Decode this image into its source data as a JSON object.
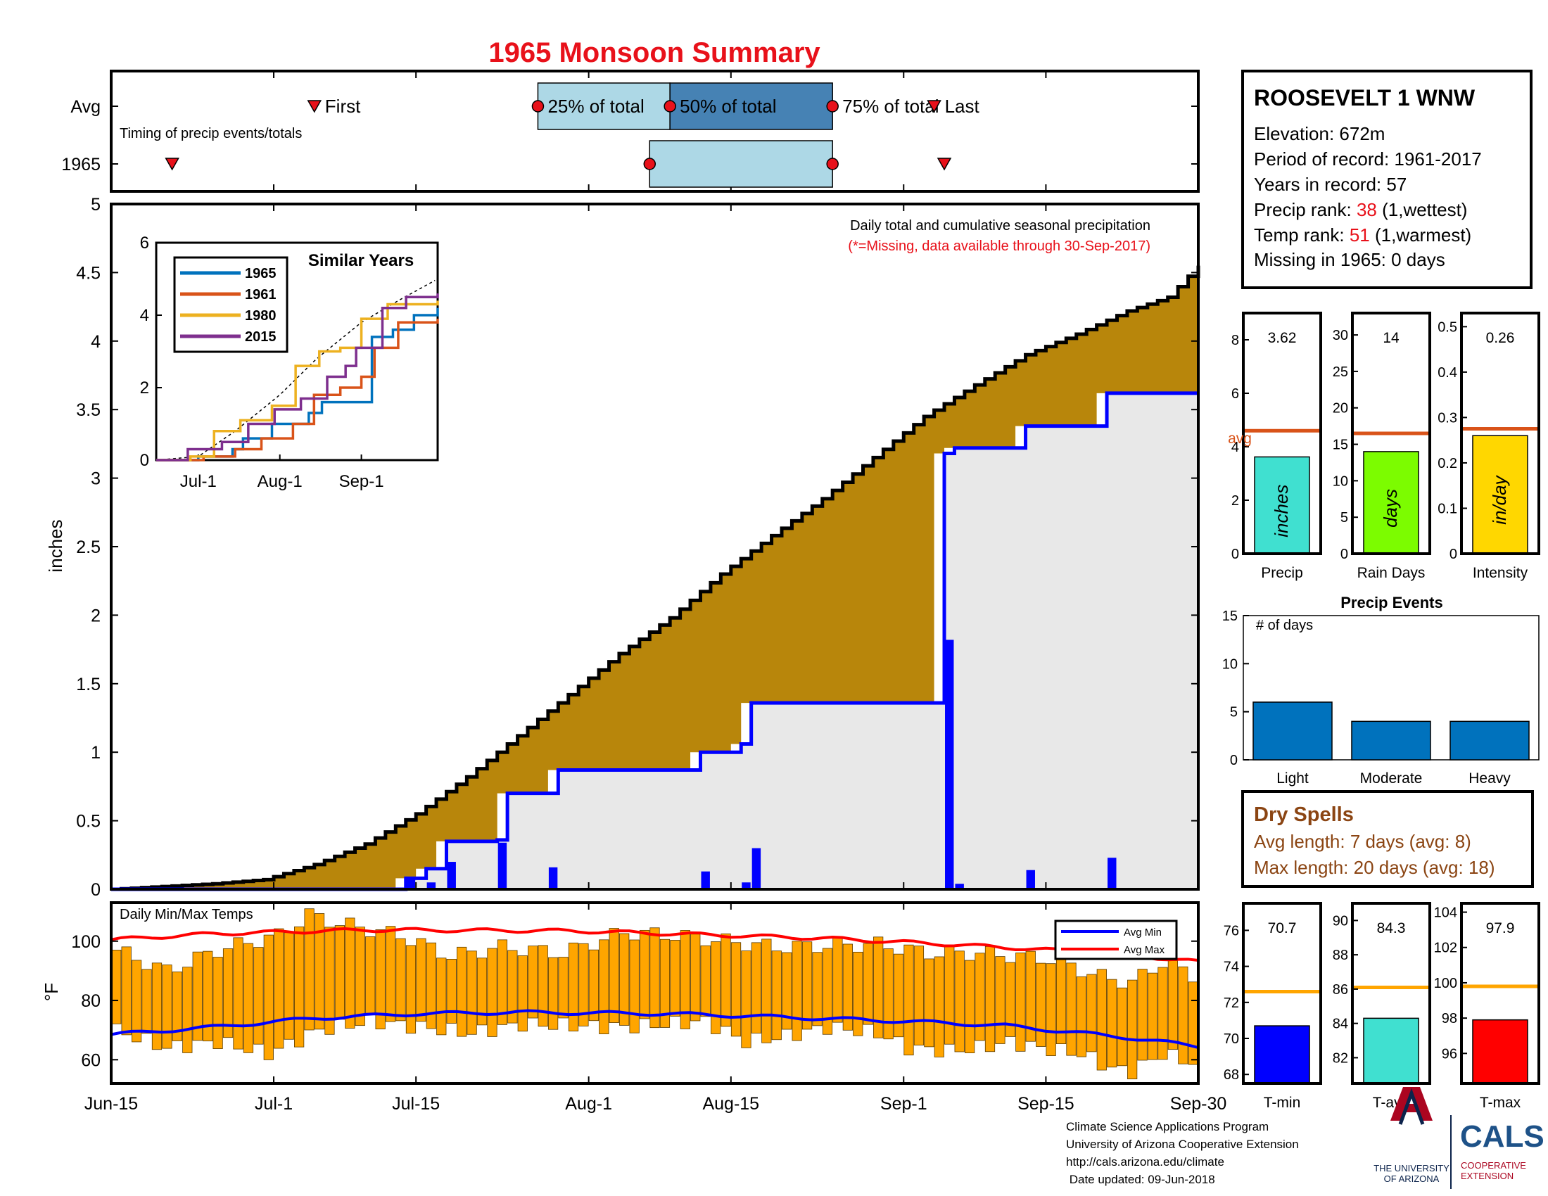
{
  "title": "1965 Monsoon Summary",
  "timing": {
    "row_labels": [
      "Avg",
      "1965"
    ],
    "caption": "Timing of precip events/totals",
    "labels": {
      "first": "First",
      "q25": "25% of total",
      "q50": "50% of total",
      "q75": "75% of total",
      "last": "Last"
    },
    "avg": {
      "first": 20,
      "q25": 42,
      "q50": 55,
      "q75": 71,
      "last": 81
    },
    "year": {
      "first": 6,
      "q50": 53,
      "q75": 71,
      "last": 82
    }
  },
  "station": {
    "name": "ROOSEVELT 1 WNW",
    "elevation": "Elevation: 672m",
    "period": "Period of record: 1961-2017",
    "years": "Years in record: 57",
    "precip_rank_label": "Precip rank: ",
    "precip_rank": "38",
    "precip_rank_note": " (1,wettest)",
    "temp_rank_label": "Temp rank: ",
    "temp_rank": "51",
    "temp_rank_note": " (1,warmest)",
    "missing": "Missing in 1965: 0 days"
  },
  "main": {
    "ylabel": "inches",
    "note": "Daily total and cumulative seasonal precipitation",
    "missing_note": "(*=Missing, data available through 30-Sep-2017)",
    "ylim": [
      0,
      5
    ],
    "yticks": [
      "0",
      "0.5",
      "1",
      "1.5",
      "2",
      "2.5",
      "3",
      "3.5",
      "4",
      "4.5",
      "5"
    ],
    "xlim": [
      0,
      107
    ],
    "xtick_labels": [
      "Jun-15",
      "Jul-1",
      "Jul-15",
      "Aug-1",
      "Aug-15",
      "Sep-1",
      "Sep-15",
      "Sep-30"
    ],
    "xtick_pos": [
      0,
      16,
      30,
      47,
      61,
      78,
      92,
      107
    ],
    "avg_cum_anchors": [
      [
        0,
        0
      ],
      [
        5,
        0.02
      ],
      [
        10,
        0.04
      ],
      [
        15,
        0.07
      ],
      [
        20,
        0.18
      ],
      [
        25,
        0.33
      ],
      [
        30,
        0.55
      ],
      [
        35,
        0.82
      ],
      [
        40,
        1.12
      ],
      [
        45,
        1.42
      ],
      [
        50,
        1.72
      ],
      [
        55,
        1.98
      ],
      [
        60,
        2.3
      ],
      [
        65,
        2.58
      ],
      [
        70,
        2.85
      ],
      [
        75,
        3.15
      ],
      [
        80,
        3.45
      ],
      [
        85,
        3.68
      ],
      [
        90,
        3.9
      ],
      [
        95,
        4.05
      ],
      [
        100,
        4.22
      ],
      [
        104,
        4.32
      ],
      [
        107,
        4.55
      ]
    ],
    "cum_steps": [
      [
        0,
        0
      ],
      [
        29,
        0.08
      ],
      [
        31,
        0.15
      ],
      [
        33,
        0.35
      ],
      [
        38,
        0.36
      ],
      [
        39,
        0.7
      ],
      [
        44,
        0.87
      ],
      [
        58,
        1.0
      ],
      [
        62,
        1.06
      ],
      [
        63,
        1.36
      ],
      [
        82,
        3.18
      ],
      [
        83,
        3.22
      ],
      [
        90,
        3.38
      ],
      [
        98,
        3.62
      ],
      [
        107,
        3.62
      ]
    ],
    "daily": [
      [
        29,
        0.07
      ],
      [
        31,
        0.05
      ],
      [
        33,
        0.2
      ],
      [
        38,
        0.34
      ],
      [
        43,
        0.16
      ],
      [
        58,
        0.13
      ],
      [
        62,
        0.05
      ],
      [
        63,
        0.3
      ],
      [
        82,
        1.82
      ],
      [
        83,
        0.04
      ],
      [
        90,
        0.14
      ],
      [
        98,
        0.23
      ]
    ]
  },
  "inset": {
    "title": "Similar Years",
    "ylim": [
      0,
      6
    ],
    "yticks": [
      "0",
      "2",
      "4",
      "6"
    ],
    "xtick_labels": [
      "Jul-1",
      "Aug-1",
      "Sep-1"
    ],
    "xtick_pos": [
      16,
      47,
      78
    ],
    "colors": [
      "#0072bd",
      "#d95319",
      "#edb120",
      "#7e2f8e"
    ],
    "series": [
      {
        "name": "1965",
        "steps": [
          [
            0,
            0
          ],
          [
            16,
            0.1
          ],
          [
            29,
            0.3
          ],
          [
            33,
            0.6
          ],
          [
            44,
            1.0
          ],
          [
            58,
            1.3
          ],
          [
            63,
            1.6
          ],
          [
            82,
            3.4
          ],
          [
            90,
            3.6
          ],
          [
            98,
            4.0
          ],
          [
            107,
            4.2
          ]
        ]
      },
      {
        "name": "1961",
        "steps": [
          [
            0,
            0
          ],
          [
            18,
            0.1
          ],
          [
            30,
            0.3
          ],
          [
            40,
            0.6
          ],
          [
            52,
            1.0
          ],
          [
            60,
            1.8
          ],
          [
            70,
            2.0
          ],
          [
            78,
            2.3
          ],
          [
            83,
            3.1
          ],
          [
            92,
            3.8
          ],
          [
            107,
            3.9
          ]
        ]
      },
      {
        "name": "1980",
        "steps": [
          [
            0,
            0
          ],
          [
            13,
            0.1
          ],
          [
            22,
            0.8
          ],
          [
            32,
            1.1
          ],
          [
            44,
            1.5
          ],
          [
            53,
            2.6
          ],
          [
            62,
            3.0
          ],
          [
            70,
            3.1
          ],
          [
            78,
            3.9
          ],
          [
            88,
            4.3
          ],
          [
            107,
            4.4
          ]
        ]
      },
      {
        "name": "2015",
        "steps": [
          [
            0,
            0
          ],
          [
            12,
            0.3
          ],
          [
            25,
            0.5
          ],
          [
            35,
            1.0
          ],
          [
            45,
            1.4
          ],
          [
            55,
            1.7
          ],
          [
            65,
            2.3
          ],
          [
            72,
            2.6
          ],
          [
            76,
            3.1
          ],
          [
            86,
            4.2
          ],
          [
            95,
            4.5
          ],
          [
            107,
            4.6
          ]
        ]
      }
    ],
    "avg_anchors": [
      [
        0,
        0
      ],
      [
        16,
        0.1
      ],
      [
        30,
        0.8
      ],
      [
        47,
        1.8
      ],
      [
        61,
        2.8
      ],
      [
        78,
        3.8
      ],
      [
        92,
        4.4
      ],
      [
        107,
        5.0
      ]
    ]
  },
  "temps": {
    "caption": "Daily Min/Max Temps",
    "ylabel": "°F",
    "ylim": [
      52,
      113
    ],
    "yticks": [
      60,
      80,
      100
    ],
    "ytick_labels": [
      "60",
      "80",
      "100"
    ],
    "legend": [
      "Avg Min",
      "Avg Max"
    ],
    "avg_max": [
      [
        0,
        100.5
      ],
      [
        10,
        102.5
      ],
      [
        25,
        103.8
      ],
      [
        45,
        103.5
      ],
      [
        55,
        102.5
      ],
      [
        70,
        101.0
      ],
      [
        82,
        99.0
      ],
      [
        90,
        97.5
      ],
      [
        100,
        95.5
      ],
      [
        107,
        93.0
      ]
    ],
    "avg_min": [
      [
        0,
        68.5
      ],
      [
        10,
        71.0
      ],
      [
        20,
        74.0
      ],
      [
        30,
        75.5
      ],
      [
        40,
        76.0
      ],
      [
        55,
        75.5
      ],
      [
        65,
        74.5
      ],
      [
        78,
        73.0
      ],
      [
        88,
        71.5
      ],
      [
        100,
        67.5
      ],
      [
        107,
        64.5
      ]
    ],
    "max_anchors": [
      [
        0,
        97
      ],
      [
        5,
        90
      ],
      [
        10,
        97
      ],
      [
        16,
        102
      ],
      [
        19,
        109
      ],
      [
        22,
        106
      ],
      [
        28,
        102
      ],
      [
        33,
        95
      ],
      [
        38,
        98
      ],
      [
        44,
        96
      ],
      [
        50,
        103
      ],
      [
        55,
        102
      ],
      [
        60,
        100
      ],
      [
        65,
        98
      ],
      [
        75,
        99
      ],
      [
        80,
        96
      ],
      [
        85,
        96
      ],
      [
        92,
        94
      ],
      [
        97,
        88
      ],
      [
        100,
        86
      ],
      [
        103,
        93
      ],
      [
        107,
        87
      ]
    ],
    "min_anchors": [
      [
        0,
        70
      ],
      [
        5,
        64
      ],
      [
        10,
        66
      ],
      [
        15,
        62
      ],
      [
        20,
        70
      ],
      [
        25,
        73
      ],
      [
        35,
        69
      ],
      [
        40,
        72
      ],
      [
        50,
        71
      ],
      [
        58,
        73
      ],
      [
        62,
        66
      ],
      [
        66,
        68
      ],
      [
        70,
        71
      ],
      [
        75,
        69
      ],
      [
        78,
        64
      ],
      [
        82,
        63
      ],
      [
        85,
        64
      ],
      [
        88,
        66
      ],
      [
        91,
        64
      ],
      [
        95,
        62
      ],
      [
        98,
        57
      ],
      [
        100,
        56
      ],
      [
        103,
        62
      ],
      [
        107,
        58
      ]
    ]
  },
  "stats": {
    "precip": {
      "value": "3.62",
      "v": 3.62,
      "avg": 4.6,
      "ylim": [
        0,
        9
      ],
      "yticks": [
        "0",
        "2",
        "4",
        "6",
        "8"
      ],
      "unit": "inches",
      "label": "Precip",
      "color": "#40e0d0",
      "avg_label": "avg"
    },
    "raindays": {
      "value": "14",
      "v": 14,
      "avg": 16.5,
      "ylim": [
        0,
        33
      ],
      "yticks": [
        "0",
        "5",
        "10",
        "15",
        "20",
        "25",
        "30"
      ],
      "unit": "days",
      "label": "Rain Days",
      "color": "#7cfc00"
    },
    "intensity": {
      "value": "0.26",
      "v": 0.26,
      "avg": 0.275,
      "ylim": [
        0,
        0.53
      ],
      "yticks": [
        "0",
        "0.1",
        "0.2",
        "0.3",
        "0.4",
        "0.5"
      ],
      "unit": "in/day",
      "label": "Intensity",
      "color": "#ffd700"
    }
  },
  "events": {
    "title": "Precip Events",
    "sublabel": "# of days",
    "categories": [
      "Light",
      "Moderate",
      "Heavy"
    ],
    "values": [
      6,
      4,
      4
    ],
    "ylim": [
      0,
      15
    ],
    "yticks": [
      "0",
      "5",
      "10",
      "15"
    ]
  },
  "dryspells": {
    "title": "Dry Spells",
    "avg": "Avg length: 7 days (avg: 8)",
    "max": "Max length: 20 days (avg: 18)"
  },
  "tstats": {
    "tmin": {
      "value": "70.7",
      "v": 70.7,
      "avg": 72.6,
      "ylim": [
        67.5,
        77.5
      ],
      "yticks": [
        "68",
        "70",
        "72",
        "74",
        "76"
      ],
      "label": "T-min",
      "color": "#0000ff"
    },
    "tavg": {
      "value": "84.3",
      "v": 84.3,
      "avg": 86.1,
      "ylim": [
        80.5,
        91
      ],
      "yticks": [
        "82",
        "84",
        "86",
        "88",
        "90"
      ],
      "label": "T-avg",
      "color": "#40e0d0"
    },
    "tmax": {
      "value": "97.9",
      "v": 97.9,
      "avg": 99.8,
      "ylim": [
        94.3,
        104.5
      ],
      "yticks": [
        "96",
        "98",
        "100",
        "102",
        "104"
      ],
      "label": "T-max",
      "color": "#ff0000"
    }
  },
  "footer": {
    "line1": "Climate Science Applications Program",
    "line2": "University of Arizona Cooperative Extension",
    "line3": "http://cals.arizona.edu/climate",
    "line4": " Date updated: 09-Jun-2018",
    "ua_line1": "THE UNIVERSITY",
    "ua_line2": "OF ARIZONA",
    "cals": "CALS",
    "cals_line1": "COOPERATIVE",
    "cals_line2": "EXTENSION"
  }
}
